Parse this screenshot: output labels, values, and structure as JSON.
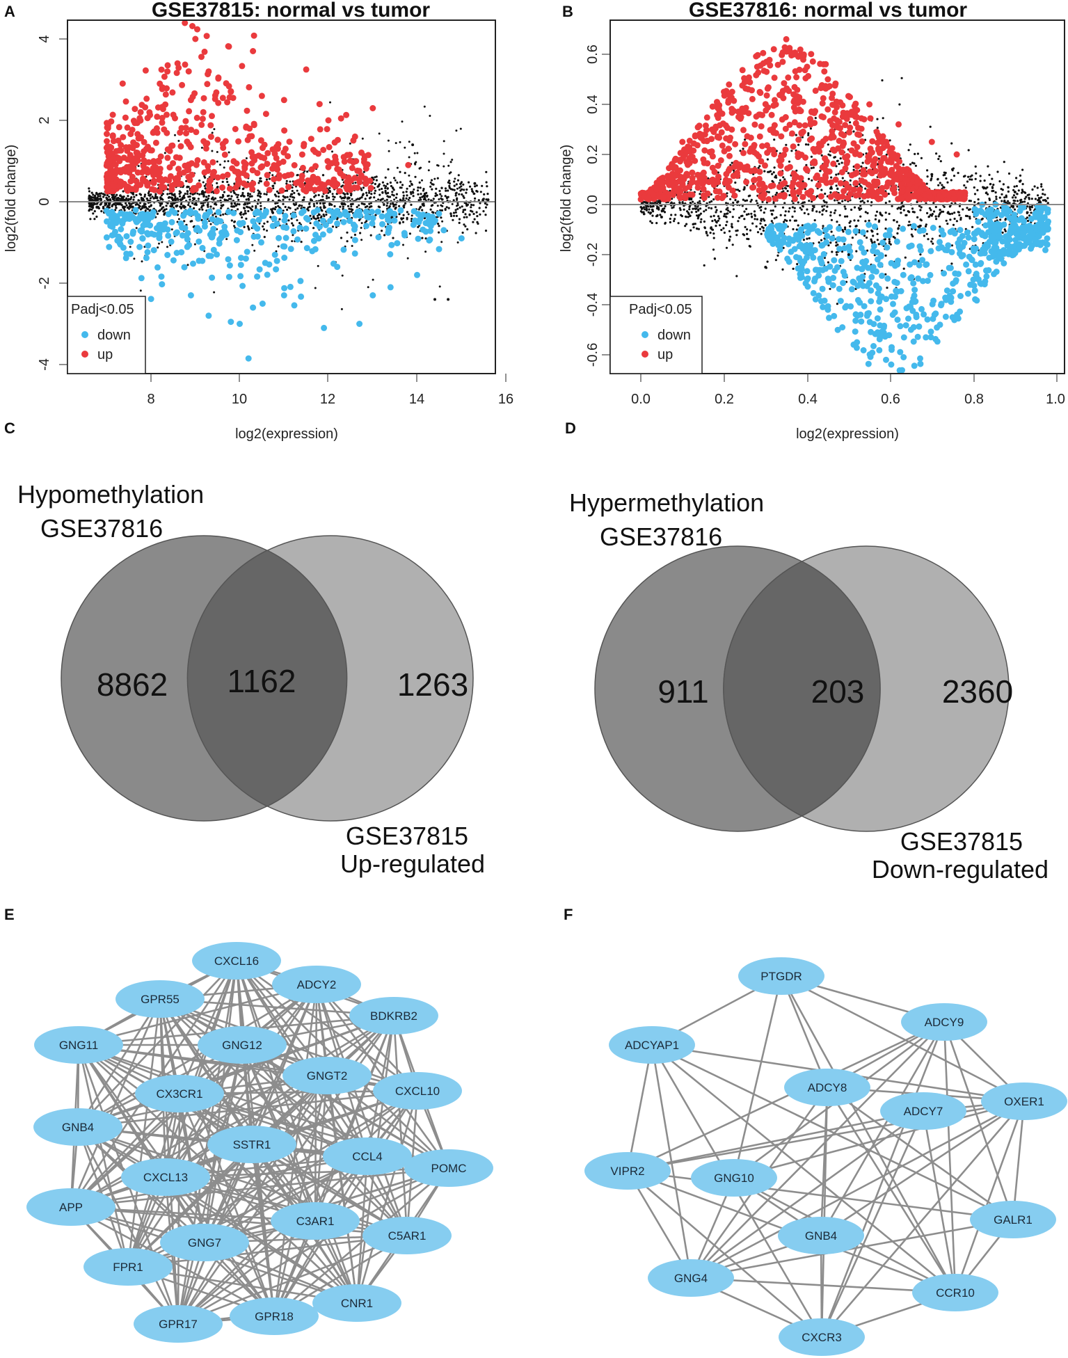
{
  "colors": {
    "up": "#ea3a3d",
    "down": "#44b9ec",
    "ns": "#111111",
    "node": "#86cdf0",
    "edge": "#8d8d8d",
    "venn_left": "#8a8a8a",
    "venn_right": "#a9a9a9",
    "venn_overlap": "#666666"
  },
  "panels": {
    "A": {
      "letter": "A",
      "chart_data": {
        "type": "scatter",
        "title": "GSE37815: normal vs tumor",
        "xlabel": "log2(expression)",
        "ylabel": "log2(fold change)",
        "xlim": [
          6.0,
          16.2
        ],
        "ylim": [
          -4.3,
          4.3
        ],
        "xticks": [
          8,
          10,
          12,
          14,
          16
        ],
        "yticks": [
          -4,
          -2,
          0,
          2,
          4
        ],
        "legend": {
          "title": "Padj<0.05",
          "entries": [
            "down",
            "up"
          ],
          "position": "bottom-left"
        },
        "series": [
          {
            "name": "up",
            "points": [
              [
                9.0,
                4.0
              ],
              [
                10.3,
                3.7
              ],
              [
                11.5,
                3.25
              ],
              [
                8.6,
                3.4
              ],
              [
                9.3,
                3.2
              ],
              [
                8.2,
                2.9
              ],
              [
                10.5,
                2.6
              ],
              [
                11.0,
                2.5
              ],
              [
                11.8,
                2.4
              ],
              [
                12.0,
                2.0
              ],
              [
                13.0,
                2.3
              ],
              [
                9.8,
                2.7
              ],
              [
                8.9,
                2.5
              ],
              [
                12.6,
                1.6
              ],
              [
                13.8,
                0.9
              ]
            ]
          },
          {
            "name": "down",
            "points": [
              [
                10.2,
                -3.85
              ],
              [
                9.3,
                -2.8
              ],
              [
                9.8,
                -2.95
              ],
              [
                10.0,
                -3.0
              ],
              [
                11.9,
                -3.1
              ],
              [
                12.7,
                -3.0
              ],
              [
                10.3,
                -2.6
              ],
              [
                8.9,
                -2.3
              ],
              [
                11.0,
                -2.3
              ],
              [
                13.0,
                -2.3
              ],
              [
                13.4,
                -2.1
              ],
              [
                14.0,
                -1.8
              ],
              [
                15.0,
                -0.9
              ],
              [
                14.6,
                -0.7
              ],
              [
                12.2,
                -1.6
              ]
            ]
          },
          {
            "name": "ns",
            "points": [
              [
                14.4,
                -2.4
              ],
              [
                14.7,
                -2.4
              ],
              [
                15.3,
                0.45
              ],
              [
                15.6,
                0.05
              ],
              [
                13.9,
                1.4
              ]
            ]
          }
        ]
      }
    },
    "B": {
      "letter": "B",
      "chart_data": {
        "type": "scatter",
        "title": "GSE37816: normal vs tumor",
        "xlabel": "log2(expression)",
        "ylabel": "log2(fold change)",
        "xlim": [
          -0.04,
          1.02
        ],
        "ylim": [
          -0.66,
          0.66
        ],
        "xticks": [
          0.0,
          0.2,
          0.4,
          0.6,
          0.8,
          1.0
        ],
        "yticks": [
          -0.6,
          -0.4,
          -0.2,
          0.0,
          0.2,
          0.4,
          0.6
        ],
        "legend": {
          "title": "Padj<0.05",
          "entries": [
            "down",
            "up"
          ],
          "position": "bottom-left"
        },
        "series": [
          {
            "name": "up",
            "points": [
              [
                0.35,
                0.66
              ],
              [
                0.32,
                0.62
              ],
              [
                0.28,
                0.55
              ],
              [
                0.4,
                0.55
              ],
              [
                0.45,
                0.5
              ],
              [
                0.2,
                0.45
              ],
              [
                0.55,
                0.4
              ],
              [
                0.62,
                0.32
              ],
              [
                0.7,
                0.25
              ],
              [
                0.76,
                0.2
              ],
              [
                0.1,
                0.25
              ]
            ]
          },
          {
            "name": "down",
            "points": [
              [
                0.59,
                -0.62
              ],
              [
                0.52,
                -0.55
              ],
              [
                0.65,
                -0.5
              ],
              [
                0.75,
                -0.45
              ],
              [
                0.45,
                -0.42
              ],
              [
                0.8,
                -0.3
              ],
              [
                0.88,
                -0.15
              ],
              [
                0.95,
                -0.05
              ],
              [
                0.4,
                -0.3
              ]
            ]
          },
          {
            "name": "ns",
            "points": [
              [
                0.05,
                -0.05
              ],
              [
                0.3,
                -0.25
              ],
              [
                0.5,
                -0.2
              ],
              [
                0.7,
                0.12
              ],
              [
                0.9,
                0.05
              ]
            ]
          }
        ]
      }
    },
    "C": {
      "letter": "C",
      "chart_data": {
        "type": "venn",
        "left_label_line1": "Hypomethylation",
        "left_label_line2": "GSE37816",
        "right_label_line1": "GSE37815",
        "right_label_line2": "Up-regulated",
        "left_only": "8862",
        "overlap": "1162",
        "right_only": "1263"
      }
    },
    "D": {
      "letter": "D",
      "chart_data": {
        "type": "venn",
        "left_label_line1": "Hypermethylation",
        "left_label_line2": "GSE37816",
        "right_label_line1": "GSE37815",
        "right_label_line2": "Down-regulated",
        "left_only": "911",
        "overlap": "203",
        "right_only": "2360"
      }
    },
    "E": {
      "letter": "E",
      "network": {
        "nodes": [
          "CXCL16",
          "ADCY2",
          "GPR55",
          "BDKRB2",
          "GNG11",
          "GNG12",
          "GNGT2",
          "CXCL10",
          "CX3CR1",
          "GNB4",
          "SSTR1",
          "CCL4",
          "POMC",
          "CXCL13",
          "APP",
          "C3AR1",
          "C5AR1",
          "GNG7",
          "FPR1",
          "CNR1",
          "GPR18",
          "GPR17"
        ],
        "edge_mode": "complete"
      }
    },
    "F": {
      "letter": "F",
      "network": {
        "nodes": [
          "PTGDR",
          "ADCY9",
          "ADCYAP1",
          "ADCY8",
          "ADCY7",
          "OXER1",
          "VIPR2",
          "GNG10",
          "GALR1",
          "GNB4",
          "GNG4",
          "CCR10",
          "CXCR3"
        ],
        "edge_mode": "dense"
      }
    }
  }
}
